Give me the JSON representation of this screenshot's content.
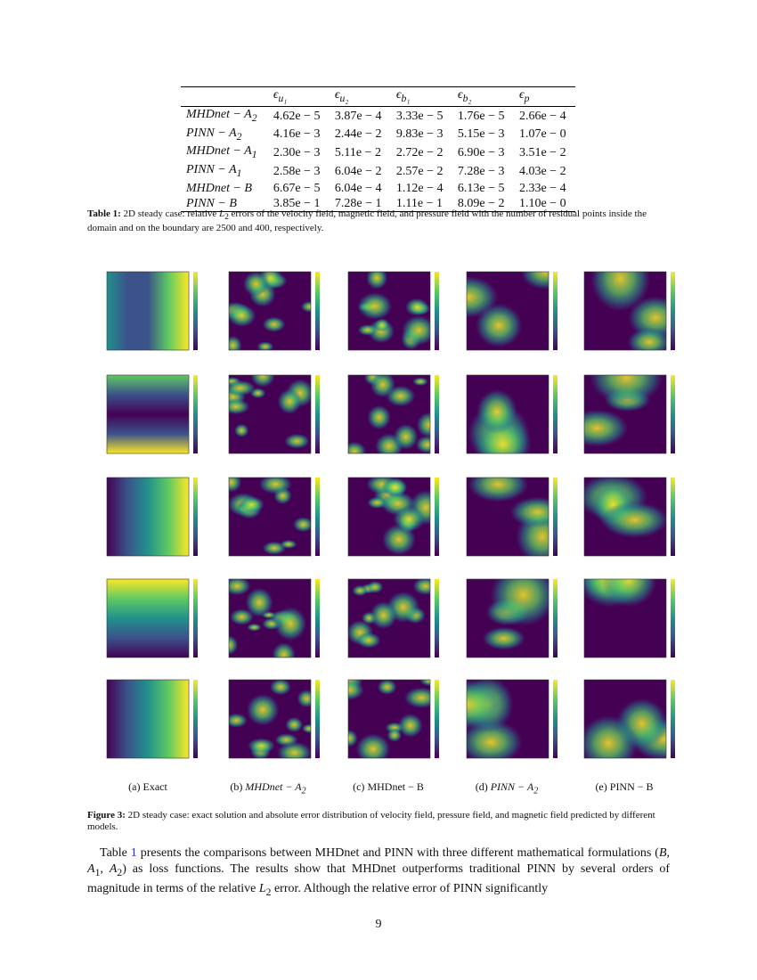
{
  "table": {
    "header": [
      {
        "base": "ϵ",
        "sub": "u₁"
      },
      {
        "base": "ϵ",
        "sub": "u₂"
      },
      {
        "base": "ϵ",
        "sub": "b₁"
      },
      {
        "base": "ϵ",
        "sub": "b₂"
      },
      {
        "base": "ϵ",
        "sub": "p"
      }
    ],
    "rows": [
      [
        {
          "base": "MHDnet − A",
          "sub": "2"
        },
        "4.62e − 5",
        "3.87e − 4",
        "3.33e − 5",
        "1.76e − 5",
        "2.66e − 4"
      ],
      [
        {
          "base": "PINN − A",
          "sub": "2"
        },
        "4.16e − 3",
        "2.44e − 2",
        "9.83e − 3",
        "5.15e − 3",
        "1.07e − 0"
      ],
      [
        {
          "base": "MHDnet − A",
          "sub": "1"
        },
        "2.30e − 3",
        "5.11e − 2",
        "2.72e − 2",
        "6.90e − 3",
        "3.51e − 2"
      ],
      [
        {
          "base": "PINN − A",
          "sub": "1"
        },
        "2.58e − 3",
        "6.04e − 2",
        "2.57e − 2",
        "7.28e − 3",
        "4.03e − 2"
      ],
      [
        {
          "base": "MHDnet − B"
        },
        "6.67e − 5",
        "6.04e − 4",
        "1.12e − 4",
        "6.13e − 5",
        "2.33e − 4"
      ],
      [
        {
          "base": "PINN − B"
        },
        "3.85e − 1",
        "7.28e − 1",
        "1.11e − 1",
        "8.09e − 2",
        "1.10e − 0"
      ]
    ]
  },
  "table_caption": {
    "label": "Table 1:",
    "parts": [
      "2D steady case: relative ",
      "L",
      "2",
      " errors of the velocity field, magnetic field, and pressure field with the number of residual points inside the domain and on the boundary are 2500 and 400, respectively."
    ]
  },
  "subfigures": [
    {
      "tag": "(a)",
      "name": "Exact"
    },
    {
      "tag": "(b)",
      "name": "MHDnet − A",
      "sub": "2"
    },
    {
      "tag": "(c)",
      "name": "MHDnet − B"
    },
    {
      "tag": "(d)",
      "name": "PINN − A",
      "sub": "2"
    },
    {
      "tag": "(e)",
      "name": "PINN − B"
    }
  ],
  "figure_caption": {
    "label": "Figure 3:",
    "text": "2D steady case: exact solution and absolute error distribution of velocity field, pressure field, and magnetic field predicted by different models."
  },
  "paragraph": [
    "Table ",
    "1",
    " presents the comparisons between MHDnet and PINN with three different mathematical formulations (",
    "B",
    ", ",
    "A",
    "1",
    ", ",
    "A",
    "2",
    ") as loss functions. The results show that MHDnet outperforms traditional PINN by several orders of magnitude in terms of the relative ",
    "L",
    "2",
    " error. Although the relative error of PINN significantly"
  ],
  "page_number": "9"
}
